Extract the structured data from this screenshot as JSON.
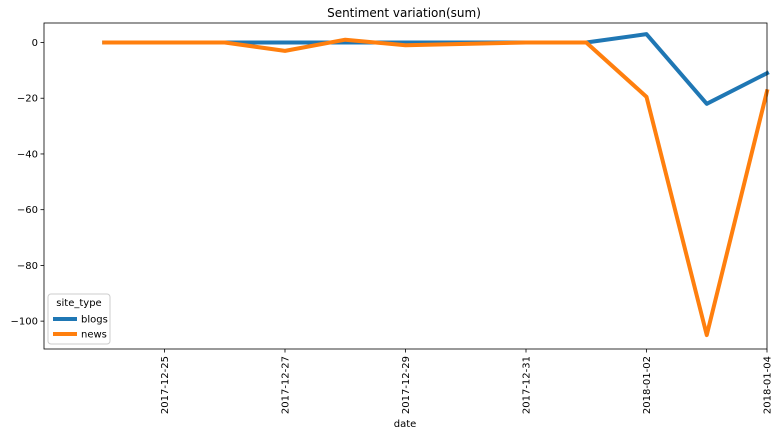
{
  "chart_data": {
    "type": "line",
    "title": "Sentiment variation(sum)",
    "xlabel": "date",
    "ylabel": "",
    "x": [
      "2017-12-24",
      "2017-12-25",
      "2017-12-26",
      "2017-12-27",
      "2017-12-28",
      "2017-12-29",
      "2017-12-30",
      "2017-12-31",
      "2018-01-01",
      "2018-01-02",
      "2018-01-03",
      "2018-01-04"
    ],
    "xticks": [
      "2017-12-25",
      "2017-12-27",
      "2017-12-29",
      "2017-12-31",
      "2018-01-02",
      "2018-01-04"
    ],
    "yticks": [
      0,
      -20,
      -40,
      -60,
      -80,
      -100
    ],
    "xlim": [
      "2017-12-23",
      "2018-01-04"
    ],
    "ylim": [
      -110,
      7
    ],
    "series": [
      {
        "name": "blogs",
        "color": "#1f77b4",
        "values": [
          0,
          0,
          0,
          0,
          0,
          0,
          0,
          0,
          0,
          3,
          -22,
          -11
        ]
      },
      {
        "name": "news",
        "color": "#ff7f0e",
        "values": [
          0,
          0,
          0,
          -3,
          1,
          -1,
          -0.5,
          0,
          0,
          -19.5,
          -105,
          -17.5
        ]
      }
    ],
    "legend": {
      "title": "site_type",
      "placement": "lower-left"
    },
    "grid": false
  }
}
